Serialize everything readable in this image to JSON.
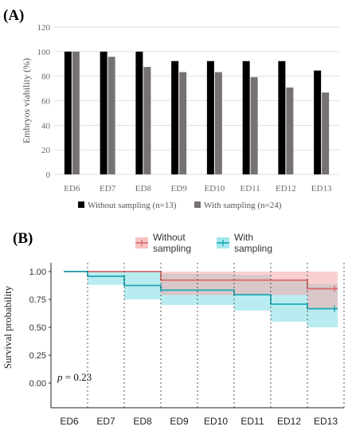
{
  "panels": {
    "a_label": "(A)",
    "b_label": "(B)"
  },
  "chart_data": [
    {
      "type": "bar",
      "title": "",
      "ylabel": "Embryos viability (%)",
      "xlabel": "",
      "ylim": [
        0,
        120
      ],
      "yticks": [
        0,
        20,
        40,
        60,
        80,
        100,
        120
      ],
      "grid": true,
      "legend_position": "bottom",
      "categories": [
        "ED6",
        "ED7",
        "ED8",
        "ED9",
        "ED10",
        "ED11",
        "ED12",
        "ED13"
      ],
      "series": [
        {
          "name": "Without sampling (n=13)",
          "color": "#000000",
          "values": [
            100,
            100,
            100,
            92.3,
            92.3,
            92.3,
            92.3,
            84.6
          ]
        },
        {
          "name": "With sampling (n=24)",
          "color": "#777272",
          "values": [
            100,
            95.8,
            87.5,
            83.3,
            83.3,
            79.2,
            70.8,
            66.7
          ]
        }
      ]
    },
    {
      "type": "line",
      "title": "",
      "ylabel": "Survival probability",
      "xlabel": "",
      "ylim": [
        0,
        1
      ],
      "yticks": [
        "0.00",
        "0.25",
        "0.50",
        "0.75",
        "1.00"
      ],
      "categories": [
        "ED6",
        "ED7",
        "ED8",
        "ED9",
        "ED10",
        "ED11",
        "ED12",
        "ED13"
      ],
      "grid": false,
      "legend_position": "top",
      "annotation": {
        "p_label": "p",
        "p_value": "= 0.23"
      },
      "series": [
        {
          "name_line1": "Without",
          "name_line2": "sampling",
          "color": "#d96a6a",
          "band_color": "#f4a9a9",
          "steps": [
            1.0,
            1.0,
            1.0,
            0.923,
            0.923,
            0.923,
            0.923,
            0.846
          ],
          "lower": [
            1.0,
            1.0,
            1.0,
            0.79,
            0.79,
            0.79,
            0.79,
            0.66
          ],
          "upper": [
            1.0,
            1.0,
            1.0,
            1.0,
            1.0,
            1.0,
            1.0,
            1.0
          ]
        },
        {
          "name_line1": "With",
          "name_line2": "sampling",
          "color": "#1aa8b4",
          "band_color": "#7fdde4",
          "steps": [
            1.0,
            0.958,
            0.875,
            0.833,
            0.833,
            0.792,
            0.708,
            0.667
          ],
          "lower": [
            1.0,
            0.88,
            0.75,
            0.7,
            0.7,
            0.65,
            0.55,
            0.5
          ],
          "upper": [
            1.0,
            1.0,
            1.0,
            0.98,
            0.98,
            0.97,
            0.92,
            0.89
          ]
        }
      ]
    }
  ]
}
